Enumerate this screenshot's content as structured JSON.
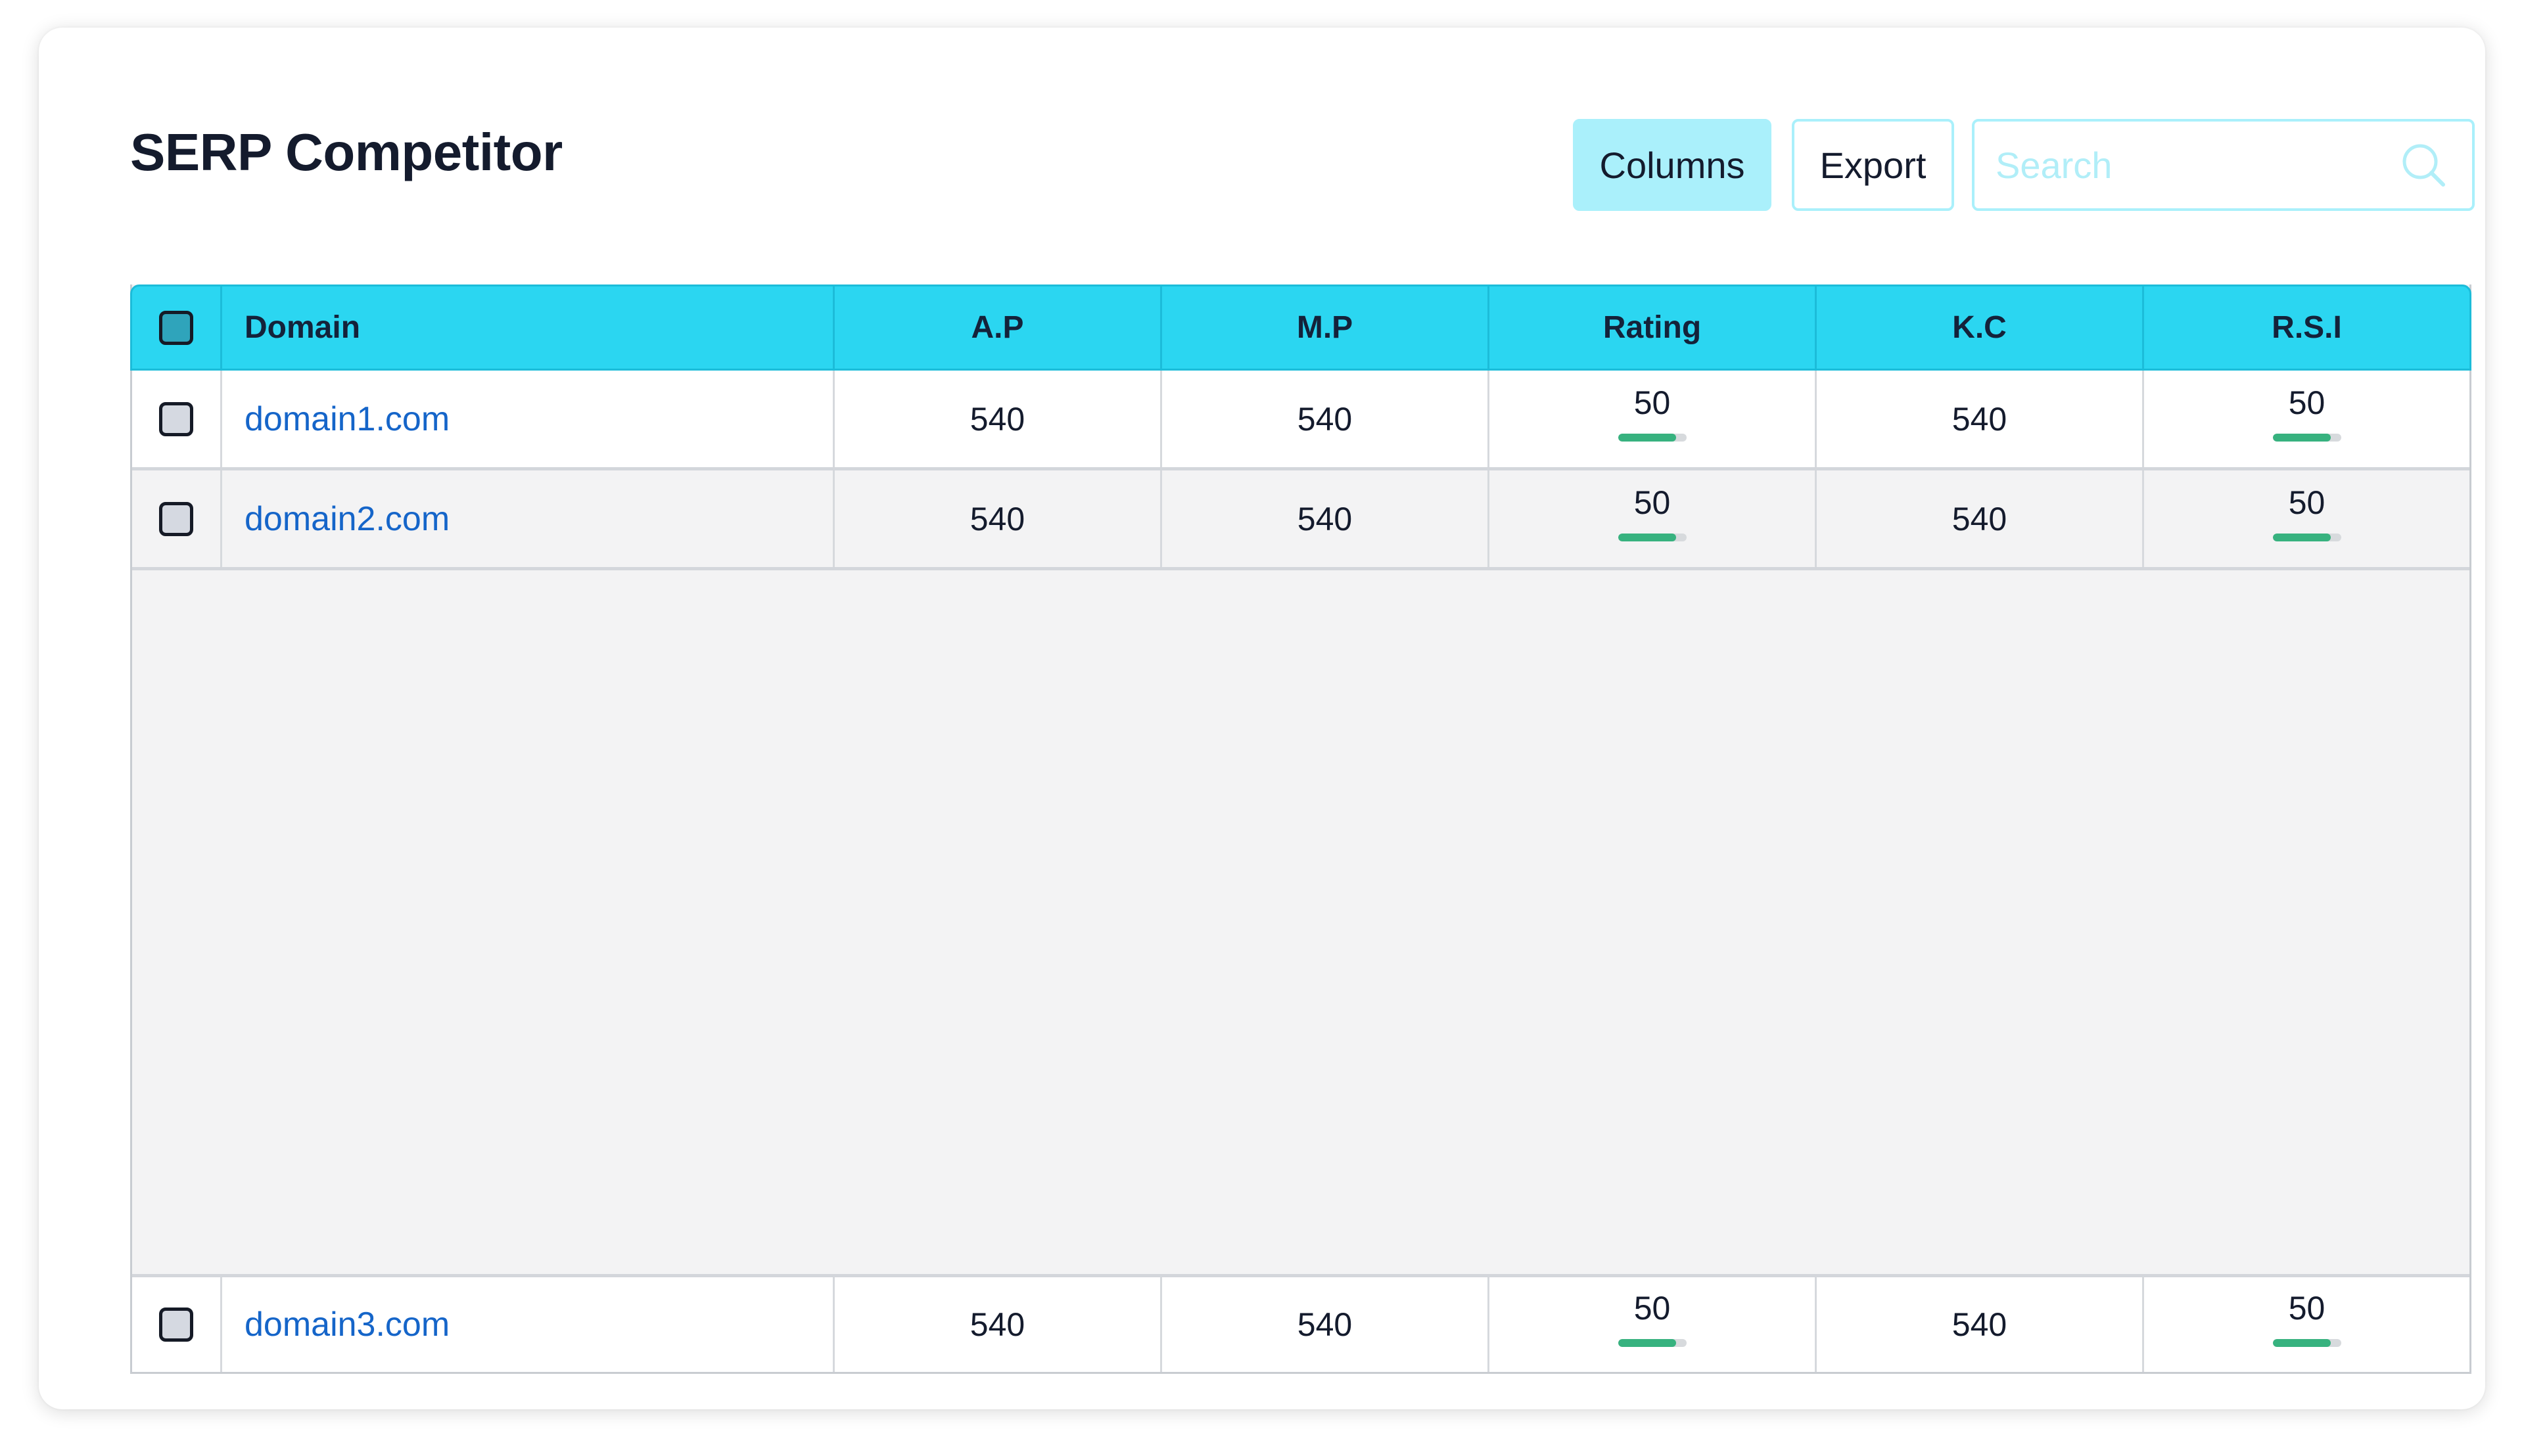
{
  "header": {
    "title": "SERP Competitor",
    "columns_label": "Columns",
    "export_label": "Export",
    "search_placeholder": "Search"
  },
  "table": {
    "columns": [
      "Domain",
      "A.P",
      "M.P",
      "Rating",
      "K.C",
      "R.S.I"
    ],
    "rows": [
      {
        "domain": "domain1.com",
        "ap": "540",
        "mp": "540",
        "rating": "50",
        "rating_fraction": 0.85,
        "kc": "540",
        "rsi": "50",
        "rsi_fraction": 0.85
      },
      {
        "domain": "domain2.com",
        "ap": "540",
        "mp": "540",
        "rating": "50",
        "rating_fraction": 0.85,
        "kc": "540",
        "rsi": "50",
        "rsi_fraction": 0.85
      },
      {
        "domain": "domain3.com",
        "ap": "540",
        "mp": "540",
        "rating": "50",
        "rating_fraction": 0.85,
        "kc": "540",
        "rsi": "50",
        "rsi_fraction": 0.85
      }
    ]
  },
  "colors": {
    "header_bg": "#2bd6f1",
    "button_accent": "#aaf0fb",
    "link": "#1565c9",
    "meter_fill": "#37b27f",
    "meter_track": "#d7dadd"
  },
  "icons": {
    "search": "search-icon"
  }
}
